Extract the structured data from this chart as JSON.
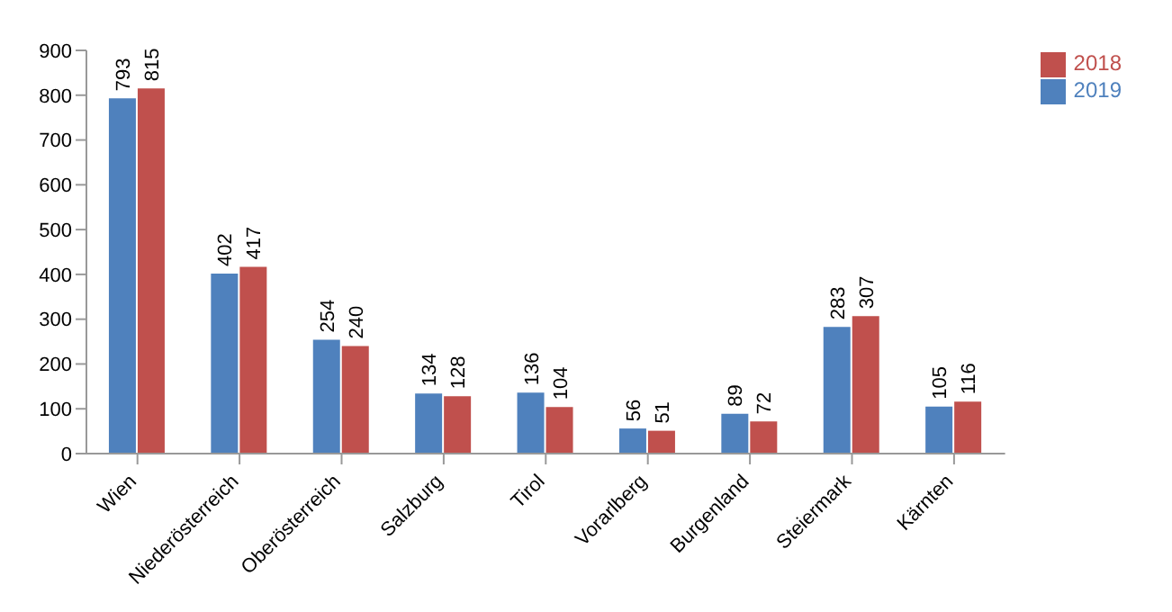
{
  "chart_data": {
    "type": "bar",
    "categories": [
      "Wien",
      "Niederösterreich",
      "Oberösterreich",
      "Salzburg",
      "Tirol",
      "Vorarlberg",
      "Burgenland",
      "Steiermark",
      "Kärnten"
    ],
    "series": [
      {
        "name": "2019",
        "color": "#4f81bd",
        "values": [
          793,
          402,
          254,
          134,
          136,
          56,
          89,
          283,
          105
        ]
      },
      {
        "name": "2018",
        "color": "#c0504d",
        "values": [
          815,
          417,
          240,
          128,
          104,
          51,
          72,
          307,
          116
        ]
      }
    ],
    "ylim": [
      0,
      900
    ],
    "yticks": [
      0,
      100,
      200,
      300,
      400,
      500,
      600,
      700,
      800,
      900
    ],
    "grid": false,
    "legend": "top right",
    "data_labels": true
  }
}
